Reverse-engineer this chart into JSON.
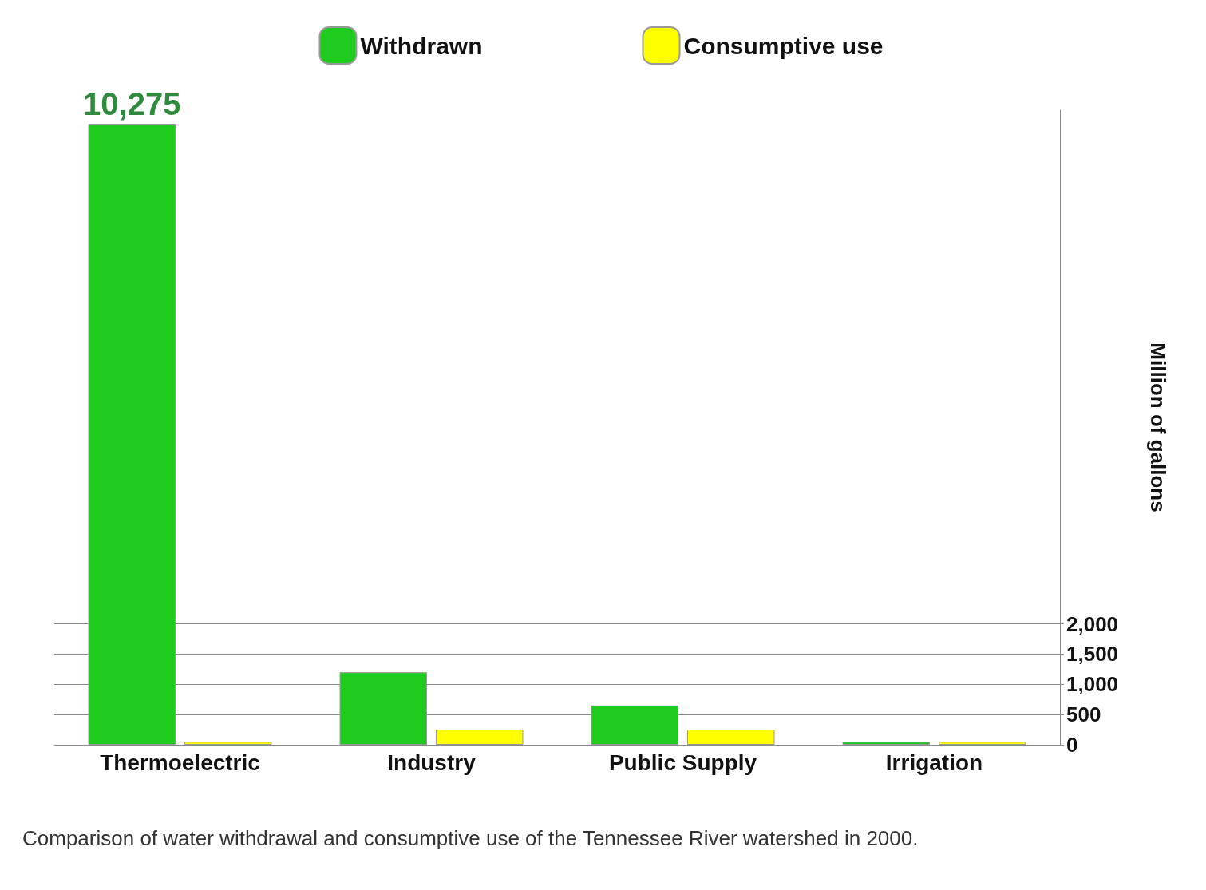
{
  "chart_data": {
    "type": "bar",
    "categories": [
      "Thermoelectric",
      "Industry",
      "Public Supply",
      "Irrigation"
    ],
    "series": [
      {
        "name": "Withdrawn",
        "color": "#1ecc1e",
        "values": [
          10275,
          1200,
          650,
          50
        ],
        "value_labels": [
          "10,275",
          null,
          null,
          null
        ]
      },
      {
        "name": "Consumptive use",
        "color": "#ffff00",
        "values": [
          50,
          250,
          250,
          50
        ]
      }
    ],
    "ylabel": "Million of gallons",
    "ylim": [
      0,
      10500
    ],
    "yticks": [
      0,
      500,
      {
        "value": 1000,
        "label": "1,000"
      },
      {
        "value": 1500,
        "label": "1,500"
      },
      {
        "value": 2000,
        "label": "2,000"
      }
    ],
    "grid": "y",
    "legend": "top",
    "annotations": [
      "Comparison of water withdrawal and consumptive use of the Tennessee River watershed in 2000."
    ]
  }
}
